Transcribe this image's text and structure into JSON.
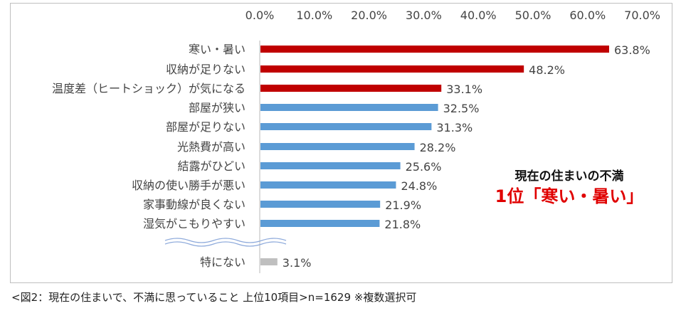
{
  "chart_data": {
    "type": "bar",
    "orientation": "horizontal",
    "categories": [
      "寒い・暑い",
      "収納が足りない",
      "温度差（ヒートショック）が気になる",
      "部屋が狭い",
      "部屋が足りない",
      "光熱費が高い",
      "結露がひどい",
      "収納の使い勝手が悪い",
      "家事動線が良くない",
      "湿気がこもりやすい",
      "特にない"
    ],
    "values": [
      63.8,
      48.2,
      33.1,
      32.5,
      31.3,
      28.2,
      25.6,
      24.8,
      21.9,
      21.8,
      3.1
    ],
    "value_labels": [
      "63.8%",
      "48.2%",
      "33.1%",
      "32.5%",
      "31.3%",
      "28.2%",
      "25.6%",
      "24.8%",
      "21.9%",
      "21.8%",
      "3.1%"
    ],
    "bar_colors": [
      "#c00000",
      "#c00000",
      "#c00000",
      "#5b9bd5",
      "#5b9bd5",
      "#5b9bd5",
      "#5b9bd5",
      "#5b9bd5",
      "#5b9bd5",
      "#5b9bd5",
      "#bfbfbf"
    ],
    "xlim": [
      0,
      70
    ],
    "x_ticks": [
      "0.0%",
      "10.0%",
      "20.0%",
      "30.0%",
      "40.0%",
      "50.0%",
      "60.0%",
      "70.0%"
    ],
    "axis_position": "top",
    "grid": false
  },
  "annotation": {
    "line1": "現在の住まいの不満",
    "line2": "1位「寒い・暑い」"
  },
  "caption": "<図2：現在の住まいで、不満に思っていること 上位10項目>n=1629 ※複数選択可"
}
